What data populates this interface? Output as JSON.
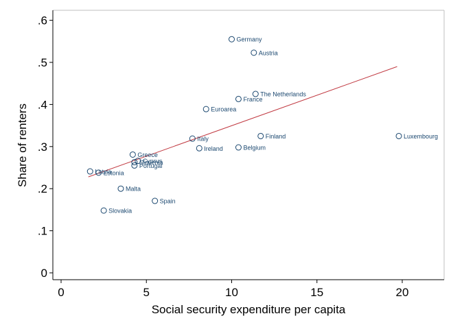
{
  "chart_data": {
    "type": "scatter",
    "title": "",
    "xlabel": "Social security expenditure per capita",
    "ylabel": "Share of renters",
    "xlim": [
      0,
      22.5
    ],
    "ylim": [
      0,
      0.62
    ],
    "x_ticks": [
      {
        "value": 0,
        "label": "0"
      },
      {
        "value": 5,
        "label": "5"
      },
      {
        "value": 10,
        "label": "10"
      },
      {
        "value": 15,
        "label": "15"
      },
      {
        "value": 20,
        "label": "20"
      }
    ],
    "y_ticks": [
      {
        "value": 0,
        "label": "0"
      },
      {
        "value": 0.1,
        "label": ".1"
      },
      {
        "value": 0.2,
        "label": ".2"
      },
      {
        "value": 0.3,
        "label": ".3"
      },
      {
        "value": 0.4,
        "label": ".4"
      },
      {
        "value": 0.5,
        "label": ".5"
      },
      {
        "value": 0.6,
        "label": ".6"
      }
    ],
    "grid": false,
    "legend": "none",
    "points": [
      {
        "label": "Germany",
        "x": 10.0,
        "y": 0.555
      },
      {
        "label": "Austria",
        "x": 11.3,
        "y": 0.523
      },
      {
        "label": "The Netherlands",
        "x": 11.4,
        "y": 0.425
      },
      {
        "label": "France",
        "x": 10.4,
        "y": 0.413
      },
      {
        "label": "Euroarea",
        "x": 8.5,
        "y": 0.389
      },
      {
        "label": "Finland",
        "x": 11.7,
        "y": 0.325
      },
      {
        "label": "Luxembourg",
        "x": 19.8,
        "y": 0.325
      },
      {
        "label": "Italy",
        "x": 7.7,
        "y": 0.319
      },
      {
        "label": "Ireland",
        "x": 8.1,
        "y": 0.296
      },
      {
        "label": "Belgium",
        "x": 10.4,
        "y": 0.298
      },
      {
        "label": "Greece",
        "x": 4.2,
        "y": 0.281
      },
      {
        "label": "Cyprus",
        "x": 4.5,
        "y": 0.266
      },
      {
        "label": "Slovenia",
        "x": 4.3,
        "y": 0.263
      },
      {
        "label": "Portugal",
        "x": 4.3,
        "y": 0.255
      },
      {
        "label": "Latvia",
        "x": 1.7,
        "y": 0.241
      },
      {
        "label": "Estonia",
        "x": 2.2,
        "y": 0.238
      },
      {
        "label": "Malta",
        "x": 3.5,
        "y": 0.2
      },
      {
        "label": "Spain",
        "x": 5.5,
        "y": 0.171
      },
      {
        "label": "Slovakia",
        "x": 2.5,
        "y": 0.148
      }
    ],
    "fit_line": {
      "x": [
        1.6,
        19.7
      ],
      "y": [
        0.228,
        0.49
      ]
    },
    "colors": {
      "marker": "#1a476f",
      "fit_line": "#c0373f",
      "axis": "#000000",
      "frame": "#bfbfbf"
    }
  }
}
